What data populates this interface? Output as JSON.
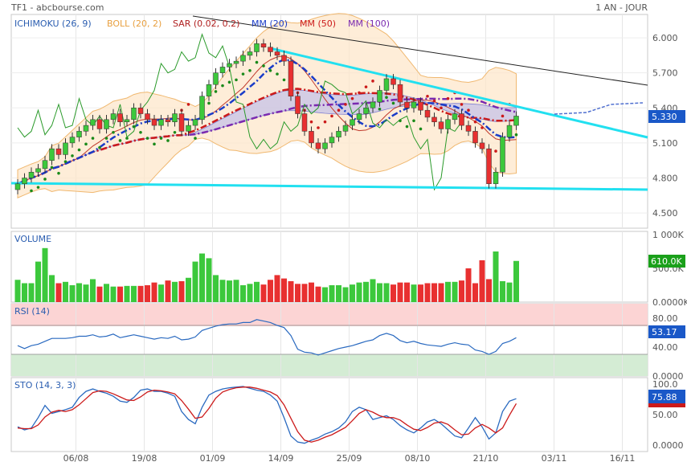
{
  "header": {
    "symbol_label": "TF1 - abcbourse.com",
    "period_label": "1 AN - JOUR"
  },
  "legend": [
    {
      "label": "ICHIMOKU (26, 9)",
      "color": "#2a5db0"
    },
    {
      "label": "BOLL (20, 2)",
      "color": "#e8a040"
    },
    {
      "label": "SAR (0.02, 0.2)",
      "color": "#b02020"
    },
    {
      "label": "MM (20)",
      "color": "#1a3cc8"
    },
    {
      "label": "MM (50)",
      "color": "#cc1a1a"
    },
    {
      "label": "MM (100)",
      "color": "#7a2ab0"
    }
  ],
  "panels": {
    "volume": {
      "label": "VOLUME"
    },
    "rsi": {
      "label": "RSI (14)"
    },
    "sto": {
      "label": "STO (14, 3, 3)"
    }
  },
  "chart_data": {
    "type": "candlestick",
    "x_ticks": [
      "06/08",
      "19/08",
      "01/09",
      "14/09",
      "25/09",
      "08/10",
      "21/10",
      "03/11",
      "16/11"
    ],
    "price_axis": {
      "ticks": [
        "6.000",
        "5.700",
        "5.400",
        "5.100",
        "4.800",
        "4.500"
      ],
      "ylim": [
        4.37,
        6.2
      ]
    },
    "last_price": "5.330",
    "close": [
      4.75,
      4.8,
      4.85,
      4.88,
      4.95,
      5.05,
      5.0,
      5.1,
      5.15,
      5.2,
      5.25,
      5.3,
      5.22,
      5.3,
      5.35,
      5.28,
      5.3,
      5.4,
      5.35,
      5.3,
      5.25,
      5.3,
      5.28,
      5.35,
      5.2,
      5.25,
      5.3,
      5.5,
      5.6,
      5.7,
      5.75,
      5.78,
      5.8,
      5.85,
      5.88,
      5.95,
      5.92,
      5.88,
      5.85,
      5.8,
      5.5,
      5.35,
      5.2,
      5.1,
      5.05,
      5.1,
      5.15,
      5.2,
      5.25,
      5.3,
      5.35,
      5.4,
      5.45,
      5.55,
      5.65,
      5.6,
      5.45,
      5.4,
      5.45,
      5.38,
      5.32,
      5.28,
      5.22,
      5.3,
      5.35,
      5.25,
      5.2,
      5.1,
      5.05,
      4.75,
      4.85,
      5.15,
      5.25,
      5.33
    ],
    "volume_axis": {
      "ticks": [
        "1 000K",
        "500.0K",
        "0.0000K"
      ],
      "last": "610.0K"
    },
    "volume": [
      330,
      280,
      280,
      600,
      800,
      400,
      280,
      300,
      250,
      280,
      260,
      340,
      230,
      270,
      230,
      230,
      240,
      240,
      240,
      250,
      290,
      260,
      320,
      300,
      310,
      360,
      600,
      720,
      650,
      400,
      330,
      320,
      330,
      250,
      270,
      300,
      260,
      330,
      400,
      350,
      310,
      270,
      270,
      290,
      230,
      220,
      250,
      250,
      220,
      260,
      290,
      300,
      340,
      280,
      280,
      260,
      290,
      290,
      260,
      260,
      280,
      280,
      280,
      300,
      300,
      320,
      500,
      280,
      620,
      340,
      750,
      310,
      290,
      610
    ],
    "rsi_axis": {
      "ticks": [
        "80.00",
        "40.00",
        "0.0000"
      ],
      "last": "53.17"
    },
    "rsi": [
      42,
      38,
      42,
      44,
      48,
      52,
      52,
      52,
      53,
      55,
      55,
      57,
      54,
      55,
      58,
      53,
      55,
      57,
      55,
      53,
      51,
      53,
      52,
      55,
      50,
      51,
      54,
      63,
      66,
      69,
      71,
      72,
      72,
      74,
      74,
      78,
      76,
      74,
      70,
      67,
      56,
      37,
      33,
      32,
      29,
      32,
      35,
      38,
      40,
      42,
      45,
      48,
      50,
      56,
      59,
      56,
      49,
      46,
      48,
      45,
      43,
      42,
      41,
      44,
      46,
      44,
      43,
      36,
      34,
      30,
      34,
      45,
      48,
      53
    ],
    "sto_axis": {
      "ticks": [
        "100.0",
        "50.00",
        "0.0000"
      ],
      "last": "75.88"
    },
    "sto_k": [
      30,
      25,
      28,
      45,
      65,
      52,
      55,
      58,
      62,
      78,
      88,
      92,
      88,
      85,
      80,
      72,
      70,
      78,
      90,
      92,
      88,
      88,
      85,
      80,
      55,
      42,
      35,
      62,
      82,
      88,
      92,
      94,
      95,
      96,
      93,
      90,
      88,
      82,
      72,
      45,
      15,
      5,
      3,
      8,
      12,
      18,
      22,
      28,
      38,
      55,
      62,
      58,
      42,
      45,
      48,
      42,
      32,
      25,
      20,
      28,
      38,
      42,
      35,
      25,
      15,
      12,
      28,
      45,
      30,
      10,
      20,
      55,
      72,
      76
    ],
    "sto_d": [
      28,
      27,
      27,
      33,
      46,
      54,
      57,
      55,
      58,
      66,
      76,
      86,
      89,
      88,
      84,
      79,
      74,
      73,
      79,
      87,
      90,
      89,
      87,
      84,
      73,
      59,
      44,
      46,
      60,
      77,
      87,
      91,
      94,
      95,
      95,
      93,
      90,
      87,
      81,
      66,
      44,
      22,
      8,
      5,
      8,
      13,
      17,
      23,
      29,
      40,
      52,
      58,
      54,
      48,
      45,
      45,
      41,
      33,
      26,
      24,
      29,
      36,
      38,
      34,
      25,
      17,
      18,
      28,
      34,
      28,
      20,
      28,
      49,
      68
    ]
  }
}
